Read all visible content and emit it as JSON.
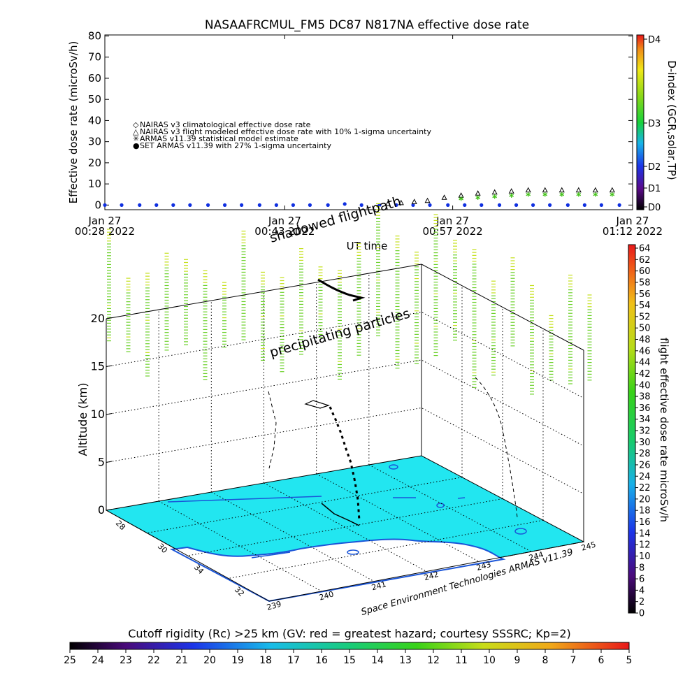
{
  "colors": {
    "ground": "#22e6f0",
    "coast": "#1a55d8",
    "axis": "#000000",
    "marker_blue": "#1030e0",
    "marker_green": "#44c21a",
    "marker_orange": "#d06020",
    "field_green": "#6cd12a",
    "field_yellow": "#c4e01a"
  },
  "top_chart": {
    "title": "NASAAFRCMUL_FM5 DC87 N817NA effective dose rate",
    "ylabel": "Effective dose rate (microSv/h)",
    "xlabel": "UT time",
    "right_axis_label": "D-index (GCR,solar,TP)",
    "y_ticks": [
      "80",
      "70",
      "60",
      "50",
      "40",
      "30",
      "20",
      "10",
      "0"
    ],
    "d_index_ticks": [
      "D4",
      "D3",
      "D2",
      "D1",
      "D0"
    ],
    "x_ticks": [
      {
        "line1": "Jan 27",
        "line2": "00:28 2022"
      },
      {
        "line1": "Jan 27",
        "line2": "00:43 2022"
      },
      {
        "line1": "Jan 27",
        "line2": "00:57 2022"
      },
      {
        "line1": "Jan 27",
        "line2": "01:12 2022"
      }
    ],
    "legend": [
      {
        "symbol": "◇",
        "text": "NAIRAS v3 climatological effective dose rate"
      },
      {
        "symbol": "△",
        "text": "NAIRAS v3 flight modeled effective dose rate with 10% 1-sigma uncertainty"
      },
      {
        "symbol": "✳",
        "text": "ARMAS v11.39 statistical model estimate"
      },
      {
        "symbol": "●",
        "text": "SET ARMAS v11.39 with 27% 1-sigma uncertainty"
      }
    ]
  },
  "chart_data": {
    "type": "scatter",
    "title": "NASAAFRCMUL_FM5 DC87 N817NA effective dose rate",
    "xlabel": "UT time",
    "ylabel": "Effective dose rate (microSv/h)",
    "ylim": [
      0,
      80
    ],
    "xlim_minutes": [
      0,
      44
    ],
    "x_tick_labels": [
      "Jan 27 00:28 2022",
      "Jan 27 00:43 2022",
      "Jan 27 00:57 2022",
      "Jan 27 01:12 2022"
    ],
    "series": [
      {
        "name": "SET ARMAS v11.39 with 27% 1-sigma uncertainty",
        "marker": "circle",
        "color": "#1030e0",
        "x": [
          0,
          1.4,
          2.9,
          4.3,
          5.7,
          7.1,
          8.6,
          10,
          11.4,
          12.9,
          14.3,
          15.7,
          17.1,
          18.6,
          20,
          21.4,
          22.9,
          24.3,
          25.7,
          27.1,
          28.6,
          30,
          31.4,
          32.9,
          34.3,
          35.7,
          37.1,
          38.6,
          40,
          41.4,
          42.9
        ],
        "y": [
          0,
          0,
          0,
          0,
          0,
          0,
          0,
          0,
          0,
          0,
          0,
          0,
          0,
          0,
          0.5,
          0,
          0,
          0,
          0,
          0,
          0,
          0,
          0,
          0,
          0,
          0,
          0,
          0,
          0,
          0,
          0
        ]
      },
      {
        "name": "NAIRAS v3 flight modeled effective dose rate with 10% 1-sigma uncertainty",
        "marker": "triangle",
        "color": "#000000",
        "x": [
          23.6,
          24.7,
          25.8,
          26.9,
          28.3,
          29.7,
          31.1,
          32.5,
          33.9,
          35.3,
          36.7,
          38.1,
          39.5,
          40.9,
          42.3
        ],
        "y": [
          0.5,
          1,
          1.5,
          2,
          3.5,
          4.5,
          5.5,
          6,
          6.5,
          7,
          7,
          7,
          7,
          7,
          7
        ]
      },
      {
        "name": "ARMAS v11.39 statistical model estimate",
        "marker": "asterisk",
        "color": "#44c21a",
        "x": [
          29.7,
          31.1,
          32.5,
          33.9,
          35.3,
          36.7,
          38.1,
          39.5,
          40.9,
          42.3
        ],
        "y": [
          3,
          3.5,
          4,
          4.5,
          5,
          5,
          5,
          5,
          5,
          5
        ]
      }
    ]
  },
  "scene": {
    "label_shadowed": "shadowed flightpath",
    "label_precip": "precipitating particles",
    "altitude_label": "Altitude (km)",
    "altitude_ticks": [
      "20",
      "15",
      "10",
      "5",
      "0"
    ],
    "lat_ticks": [
      "28",
      "30",
      "34",
      "32"
    ],
    "lon_ticks": [
      "239",
      "240",
      "241",
      "242",
      "243",
      "244",
      "245"
    ],
    "credit": "Space Environment Technologies ARMAS v11.39",
    "dose_colorbar_label": "flight effective dose rate microSv/h",
    "dose_ticks": [
      "64",
      "62",
      "60",
      "58",
      "56",
      "54",
      "52",
      "50",
      "48",
      "46",
      "44",
      "42",
      "40",
      "38",
      "36",
      "34",
      "32",
      "30",
      "28",
      "26",
      "24",
      "22",
      "20",
      "18",
      "16",
      "14",
      "12",
      "10",
      "8",
      "6",
      "4",
      "2",
      "0"
    ]
  },
  "cutoff_bar": {
    "label": "Cutoff rigidity (Rc) >25 km (GV: red = greatest hazard; courtesy SSSRC; Kp=2)",
    "ticks": [
      "25",
      "24",
      "23",
      "22",
      "21",
      "20",
      "19",
      "18",
      "17",
      "16",
      "15",
      "14",
      "13",
      "12",
      "11",
      "10",
      "9",
      "8",
      "7",
      "6",
      "5"
    ]
  }
}
